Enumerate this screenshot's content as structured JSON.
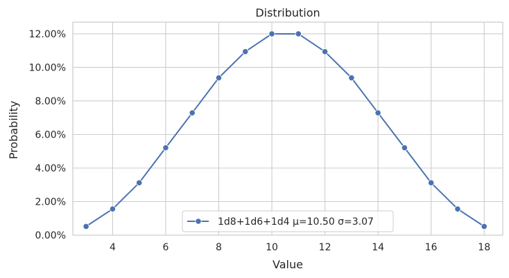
{
  "chart_data": {
    "type": "line",
    "title": "Distribution",
    "xlabel": "Value",
    "ylabel": "Probability",
    "xlim": [
      2.5,
      18.7
    ],
    "ylim": [
      0,
      0.127
    ],
    "x_ticks": [
      4,
      6,
      8,
      10,
      12,
      14,
      16,
      18
    ],
    "x_tick_labels": [
      "4",
      "6",
      "8",
      "10",
      "12",
      "14",
      "16",
      "18"
    ],
    "y_ticks": [
      0,
      0.02,
      0.04,
      0.06,
      0.08,
      0.1,
      0.12
    ],
    "y_tick_labels": [
      "0.00%",
      "2.00%",
      "4.00%",
      "6.00%",
      "8.00%",
      "10.00%",
      "12.00%"
    ],
    "grid": true,
    "legend_position": "bottom-center",
    "color": "#4c72b0",
    "series": [
      {
        "name": "1d8+1d6+1d4 μ=10.50 σ=3.07",
        "x": [
          3,
          4,
          5,
          6,
          7,
          8,
          9,
          10,
          11,
          12,
          13,
          14,
          15,
          16,
          17,
          18
        ],
        "y": [
          0.0052,
          0.0156,
          0.0312,
          0.0521,
          0.0729,
          0.0938,
          0.1094,
          0.12,
          0.12,
          0.1094,
          0.0938,
          0.0729,
          0.0521,
          0.0312,
          0.0156,
          0.0052
        ]
      }
    ]
  }
}
